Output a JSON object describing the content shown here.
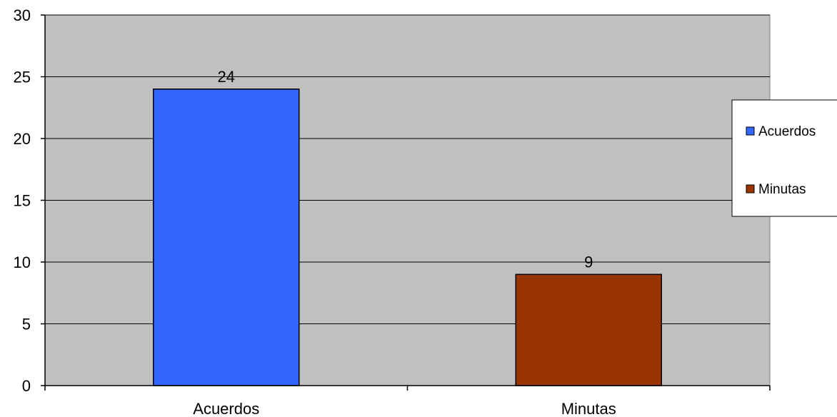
{
  "chart_data": {
    "type": "bar",
    "categories": [
      "Acuerdos",
      "Minutas"
    ],
    "values": [
      24,
      9
    ],
    "data_labels": [
      "24",
      "9"
    ],
    "colors": [
      "#3366ff",
      "#993300"
    ],
    "ylim": [
      0,
      30
    ],
    "yticks": [
      0,
      5,
      10,
      15,
      20,
      25,
      30
    ],
    "grid": true,
    "legend": {
      "placement": "right",
      "entries": [
        {
          "label": "Acuerdos",
          "color": "#3366ff"
        },
        {
          "label": "Minutas",
          "color": "#993300"
        }
      ]
    },
    "plot_background": "#c0c0c0"
  }
}
